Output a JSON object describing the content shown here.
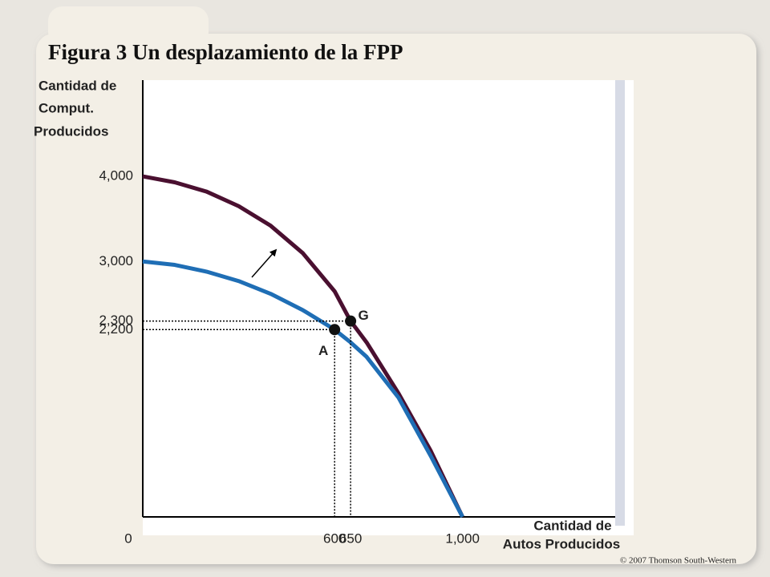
{
  "chart_data": {
    "type": "line",
    "title": "Figura 3 Un desplazamiento de la FPP",
    "y_label": [
      "Cantidad de",
      "Comput.",
      "Producidos"
    ],
    "x_label": [
      "Cantidad de",
      "Autos Producidos"
    ],
    "x": [
      0,
      100,
      200,
      300,
      400,
      500,
      600,
      650,
      700,
      800,
      900,
      1000
    ],
    "series": [
      {
        "color": "#4a1030",
        "values": [
          4000,
          3930,
          3820,
          3650,
          3420,
          3100,
          2650,
          2300,
          2050,
          1450,
          780,
          0
        ]
      },
      {
        "color": "#1f6eb5",
        "values": [
          3000,
          2960,
          2880,
          2770,
          2620,
          2430,
          2200,
          2050,
          1880,
          1400,
          720,
          0
        ]
      }
    ],
    "points": [
      {
        "label": "A",
        "x": 600,
        "y": 2200
      },
      {
        "label": "G",
        "x": 650,
        "y": 2300
      }
    ],
    "xlim": [
      0,
      1475
    ],
    "ylim": [
      0,
      5130
    ],
    "xticks": [
      0,
      600,
      650,
      {
        "value": 1000,
        "label": "1,000"
      }
    ],
    "yticks": [
      {
        "value": 2200,
        "label": "2,200"
      },
      {
        "value": 2300,
        "label": "2,300"
      },
      {
        "value": 3000,
        "label": "3,000"
      },
      {
        "value": 4000,
        "label": "4,000"
      }
    ],
    "credit": "© 2007 Thomson South-Western"
  }
}
